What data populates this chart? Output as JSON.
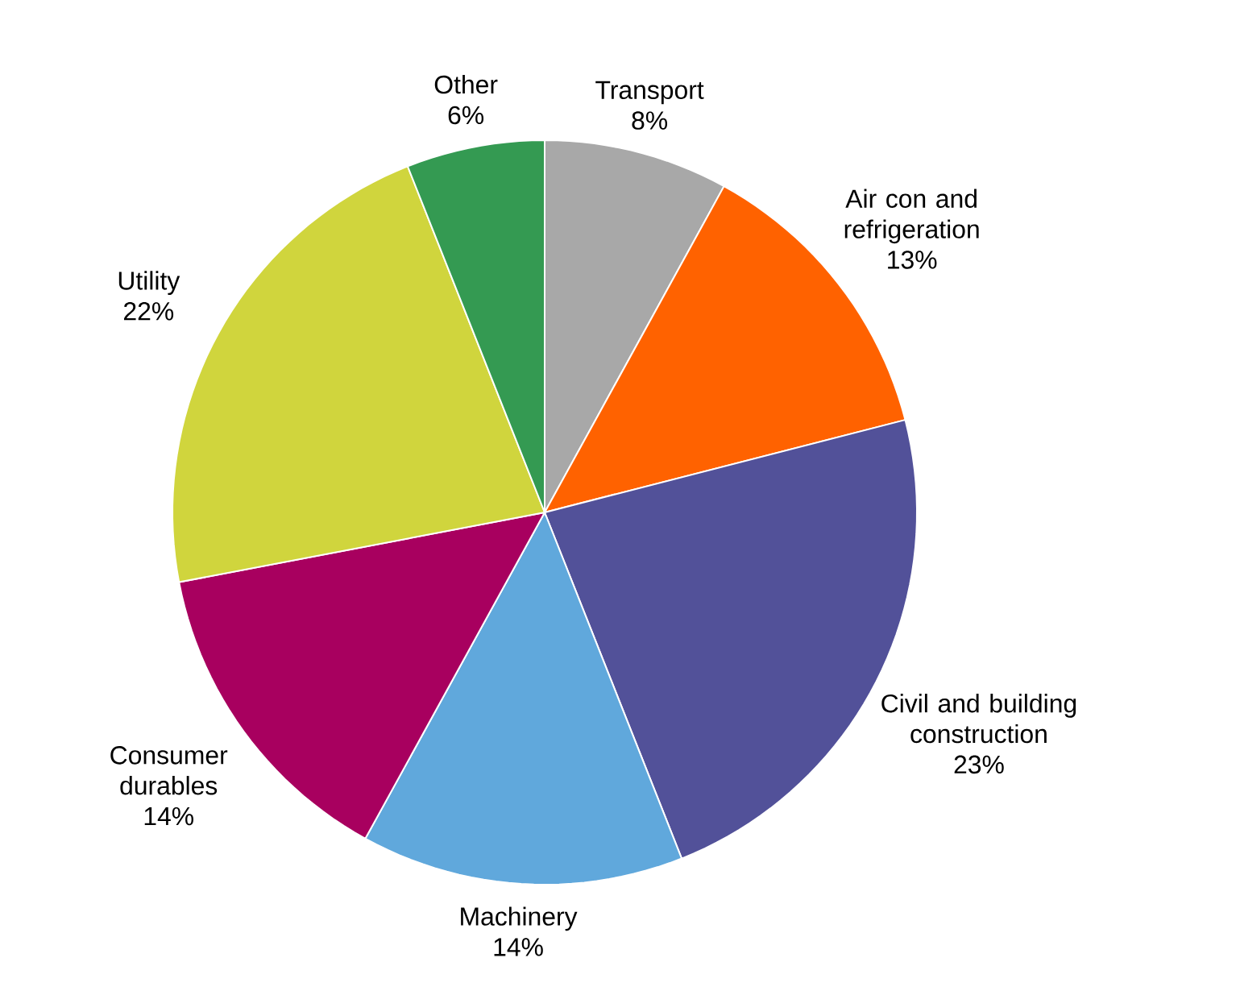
{
  "chart_data": {
    "type": "pie",
    "categories": [
      "Transport",
      "Air con and refrigeration",
      "Civil and building construction",
      "Machinery",
      "Consumer durables",
      "Utility",
      "Other"
    ],
    "values": [
      8,
      13,
      23,
      14,
      14,
      22,
      6
    ],
    "value_labels": [
      "8%",
      "13%",
      "23%",
      "14%",
      "14%",
      "22%",
      "6%"
    ],
    "colors": [
      "#a8a8a8",
      "#ff6200",
      "#525199",
      "#60a8dc",
      "#a8005f",
      "#d0d53d",
      "#349a52"
    ]
  }
}
